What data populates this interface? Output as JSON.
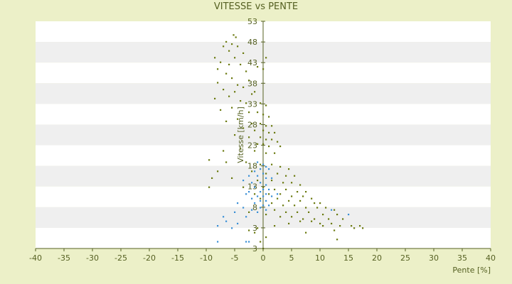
{
  "chart_data": {
    "type": "scatter",
    "title": "VITESSE vs PENTE",
    "xlabel": "Pente [%]",
    "ylabel": "Vitesse [km/h]",
    "xlim": [
      -40,
      40
    ],
    "ylim": [
      3,
      53
    ],
    "x_ticks": [
      "-40",
      "-35",
      "-30",
      "-25",
      "-20",
      "-15",
      "-10",
      "-5",
      "0",
      "5",
      "10",
      "15",
      "20",
      "25",
      "30",
      "35",
      "40"
    ],
    "y_ticks": [
      "53",
      "48",
      "43",
      "38",
      "33",
      "28",
      "23",
      "18",
      "13",
      "8",
      "3",
      "3"
    ],
    "grid": "alternating horizontal bands",
    "legend": "none",
    "colors": {
      "background": "#ecf0c8",
      "band_light": "#ffffff",
      "band_dark": "#efefef",
      "axis": "#556022",
      "text": "#556022"
    },
    "series": [
      {
        "color": "#6b7a10",
        "points": [
          [
            -5.2,
            50
          ],
          [
            -4.8,
            49.5
          ],
          [
            -6.5,
            48.5
          ],
          [
            -5.5,
            48
          ],
          [
            -7.0,
            47.5
          ],
          [
            -4.5,
            47.5
          ],
          [
            -6.0,
            46.5
          ],
          [
            -3.5,
            46
          ],
          [
            -5.0,
            45
          ],
          [
            -8.5,
            45
          ],
          [
            0.5,
            45
          ],
          [
            -7.5,
            44
          ],
          [
            -6.0,
            43.5
          ],
          [
            -4.0,
            43.5
          ],
          [
            -8.0,
            42.5
          ],
          [
            -3.0,
            42
          ],
          [
            -1.0,
            43
          ],
          [
            0.0,
            42.5
          ],
          [
            -6.5,
            41.5
          ],
          [
            -5.5,
            40.5
          ],
          [
            -2.5,
            40
          ],
          [
            -8.0,
            39.5
          ],
          [
            -4.5,
            39
          ],
          [
            -3.5,
            38.5
          ],
          [
            -7.0,
            38
          ],
          [
            -5.0,
            37.5
          ],
          [
            -2.0,
            37
          ],
          [
            -1.5,
            37.5
          ],
          [
            -6.0,
            36.5
          ],
          [
            -8.5,
            36
          ],
          [
            -4.0,
            35.5
          ],
          [
            -3.0,
            35
          ],
          [
            -0.5,
            35
          ],
          [
            0.5,
            34.5
          ],
          [
            -5.5,
            34
          ],
          [
            -7.5,
            33.5
          ],
          [
            -2.5,
            33
          ],
          [
            -1.0,
            33
          ],
          [
            0.0,
            32.5
          ],
          [
            1.0,
            32
          ],
          [
            -4.5,
            31.5
          ],
          [
            -6.5,
            31
          ],
          [
            -2.0,
            30.5
          ],
          [
            -0.5,
            30.5
          ],
          [
            0.5,
            30
          ],
          [
            1.5,
            30
          ],
          [
            -3.5,
            29.5
          ],
          [
            -1.5,
            29
          ],
          [
            0.0,
            29
          ],
          [
            1.0,
            28.5
          ],
          [
            2.0,
            28.5
          ],
          [
            -5.0,
            28
          ],
          [
            -2.5,
            27.5
          ],
          [
            -0.5,
            27.5
          ],
          [
            0.5,
            27
          ],
          [
            1.5,
            27
          ],
          [
            2.5,
            26.5
          ],
          [
            -1.0,
            26
          ],
          [
            0.0,
            26
          ],
          [
            1.0,
            25.5
          ],
          [
            3.0,
            25.5
          ],
          [
            -4.0,
            25
          ],
          [
            -7.0,
            24.5
          ],
          [
            -1.5,
            24.5
          ],
          [
            0.5,
            24
          ],
          [
            2.0,
            24
          ],
          [
            -9.5,
            22.5
          ],
          [
            -6.5,
            22
          ],
          [
            -3.0,
            22
          ],
          [
            -0.5,
            21.5
          ],
          [
            1.5,
            21.5
          ],
          [
            3.0,
            21
          ],
          [
            4.5,
            20.5
          ],
          [
            -8.0,
            20
          ],
          [
            -2.0,
            20
          ],
          [
            0.5,
            19.5
          ],
          [
            2.5,
            19.5
          ],
          [
            4.0,
            19
          ],
          [
            5.5,
            19
          ],
          [
            -9.0,
            18.5
          ],
          [
            -5.5,
            18.5
          ],
          [
            -1.0,
            18
          ],
          [
            1.5,
            18
          ],
          [
            3.5,
            17.5
          ],
          [
            5.0,
            17.5
          ],
          [
            6.5,
            17
          ],
          [
            -9.5,
            16.5
          ],
          [
            -3.5,
            16.5
          ],
          [
            0.0,
            16.5
          ],
          [
            2.0,
            16
          ],
          [
            4.0,
            16
          ],
          [
            6.0,
            15.5
          ],
          [
            7.5,
            15.5
          ],
          [
            -1.5,
            15
          ],
          [
            1.0,
            15
          ],
          [
            3.0,
            15
          ],
          [
            5.0,
            14.5
          ],
          [
            7.0,
            14.5
          ],
          [
            8.5,
            14
          ],
          [
            -0.5,
            14
          ],
          [
            2.5,
            14
          ],
          [
            4.5,
            13.5
          ],
          [
            6.5,
            13.5
          ],
          [
            9.0,
            13
          ],
          [
            10.0,
            13
          ],
          [
            1.5,
            13
          ],
          [
            3.5,
            12.5
          ],
          [
            5.5,
            12.5
          ],
          [
            7.5,
            12
          ],
          [
            9.5,
            12
          ],
          [
            11.0,
            12
          ],
          [
            12.5,
            11.5
          ],
          [
            2.0,
            11.5
          ],
          [
            4.0,
            11
          ],
          [
            6.0,
            11
          ],
          [
            8.0,
            11
          ],
          [
            10.5,
            10.5
          ],
          [
            13.0,
            10.5
          ],
          [
            -2.5,
            11
          ],
          [
            0.5,
            10.5
          ],
          [
            3.0,
            10
          ],
          [
            5.0,
            10
          ],
          [
            7.0,
            9.5
          ],
          [
            9.0,
            9.5
          ],
          [
            11.5,
            9.5
          ],
          [
            14.0,
            9.5
          ],
          [
            6.5,
            9
          ],
          [
            8.5,
            9
          ],
          [
            10.0,
            8.5
          ],
          [
            12.0,
            8.5
          ],
          [
            4.5,
            8.5
          ],
          [
            15.5,
            8
          ],
          [
            17.0,
            8
          ],
          [
            16.0,
            7.5
          ],
          [
            17.5,
            7.5
          ],
          [
            10.5,
            8
          ],
          [
            13.5,
            8
          ],
          [
            -1.0,
            7.5
          ],
          [
            2.0,
            8
          ],
          [
            12.5,
            7
          ],
          [
            7.5,
            6.5
          ],
          [
            -2.5,
            7
          ],
          [
            -1.5,
            6.5
          ],
          [
            13.0,
            5
          ],
          [
            0.5,
            5.5
          ],
          [
            -0.5,
            4.5
          ],
          [
            0.0,
            3
          ]
        ]
      },
      {
        "color": "#3a8fd6",
        "points": [
          [
            -1.0,
            22
          ],
          [
            0.0,
            21.5
          ],
          [
            0.5,
            21
          ],
          [
            -0.5,
            20.5
          ],
          [
            1.0,
            20.5
          ],
          [
            -1.5,
            20
          ],
          [
            0.0,
            19.5
          ],
          [
            -2.5,
            19
          ],
          [
            -1.0,
            19
          ],
          [
            0.5,
            18.5
          ],
          [
            1.5,
            18.5
          ],
          [
            -3.5,
            18
          ],
          [
            -2.0,
            17.5
          ],
          [
            -0.5,
            17.5
          ],
          [
            0.5,
            17
          ],
          [
            -1.5,
            16.5
          ],
          [
            0.0,
            16
          ],
          [
            1.0,
            16
          ],
          [
            -2.5,
            15.5
          ],
          [
            -0.5,
            15.5
          ],
          [
            0.5,
            15
          ],
          [
            -3.0,
            15
          ],
          [
            -1.0,
            14.5
          ],
          [
            0.0,
            14.5
          ],
          [
            1.5,
            14.5
          ],
          [
            -2.0,
            14
          ],
          [
            -0.5,
            13.5
          ],
          [
            0.5,
            13.5
          ],
          [
            -4.5,
            13
          ],
          [
            -1.5,
            13
          ],
          [
            0.0,
            12.5
          ],
          [
            1.0,
            12.5
          ],
          [
            -3.5,
            12
          ],
          [
            -0.5,
            12
          ],
          [
            -2.0,
            11.5
          ],
          [
            0.5,
            11.5
          ],
          [
            -5.0,
            11
          ],
          [
            -1.0,
            11
          ],
          [
            -7.0,
            10
          ],
          [
            -3.0,
            10
          ],
          [
            -6.5,
            9
          ],
          [
            -4.5,
            8.5
          ],
          [
            -8.0,
            8
          ],
          [
            -5.5,
            7.5
          ],
          [
            15.0,
            10.5
          ],
          [
            12.0,
            11.5
          ],
          [
            -8.0,
            4.5
          ],
          [
            -3.0,
            4.5
          ],
          [
            -2.5,
            4.5
          ],
          [
            2.5,
            15
          ]
        ]
      }
    ]
  }
}
